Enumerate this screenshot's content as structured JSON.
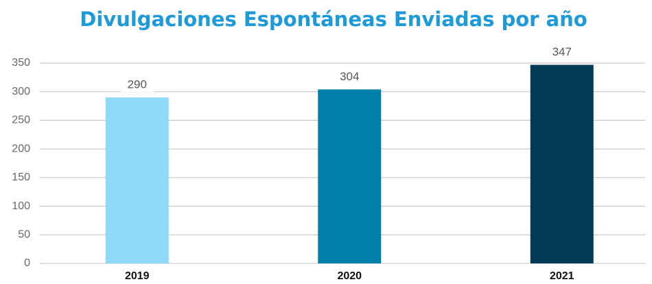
{
  "chart_data": {
    "type": "bar",
    "title": "Divulgaciones Espontáneas Enviadas por año",
    "categories": [
      "2019",
      "2020",
      "2021"
    ],
    "values": [
      290,
      304,
      347
    ],
    "colors": [
      "#8fd8f8",
      "#0080a9",
      "#003a55"
    ],
    "ylim": [
      0,
      350
    ],
    "yticks": [
      0,
      50,
      100,
      150,
      200,
      250,
      300,
      350
    ],
    "grid": true
  }
}
